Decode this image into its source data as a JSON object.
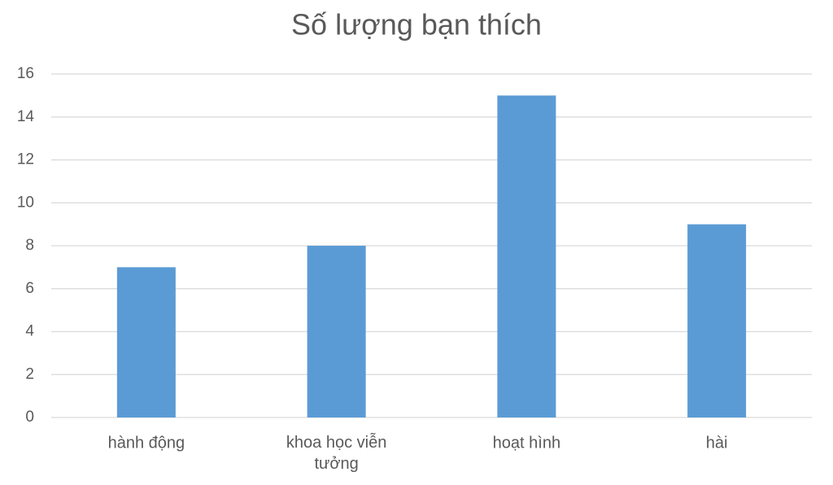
{
  "chart_data": {
    "type": "bar",
    "title": "Số lượng bạn thích",
    "categories": [
      "hành động",
      "khoa học viễn tưởng",
      "hoạt hình",
      "hài"
    ],
    "values": [
      7,
      8,
      15,
      9
    ],
    "color": "#5b9bd5",
    "ylim": [
      0,
      16
    ],
    "yticks": [
      0,
      2,
      4,
      6,
      8,
      10,
      12,
      14,
      16
    ],
    "grid": true
  }
}
